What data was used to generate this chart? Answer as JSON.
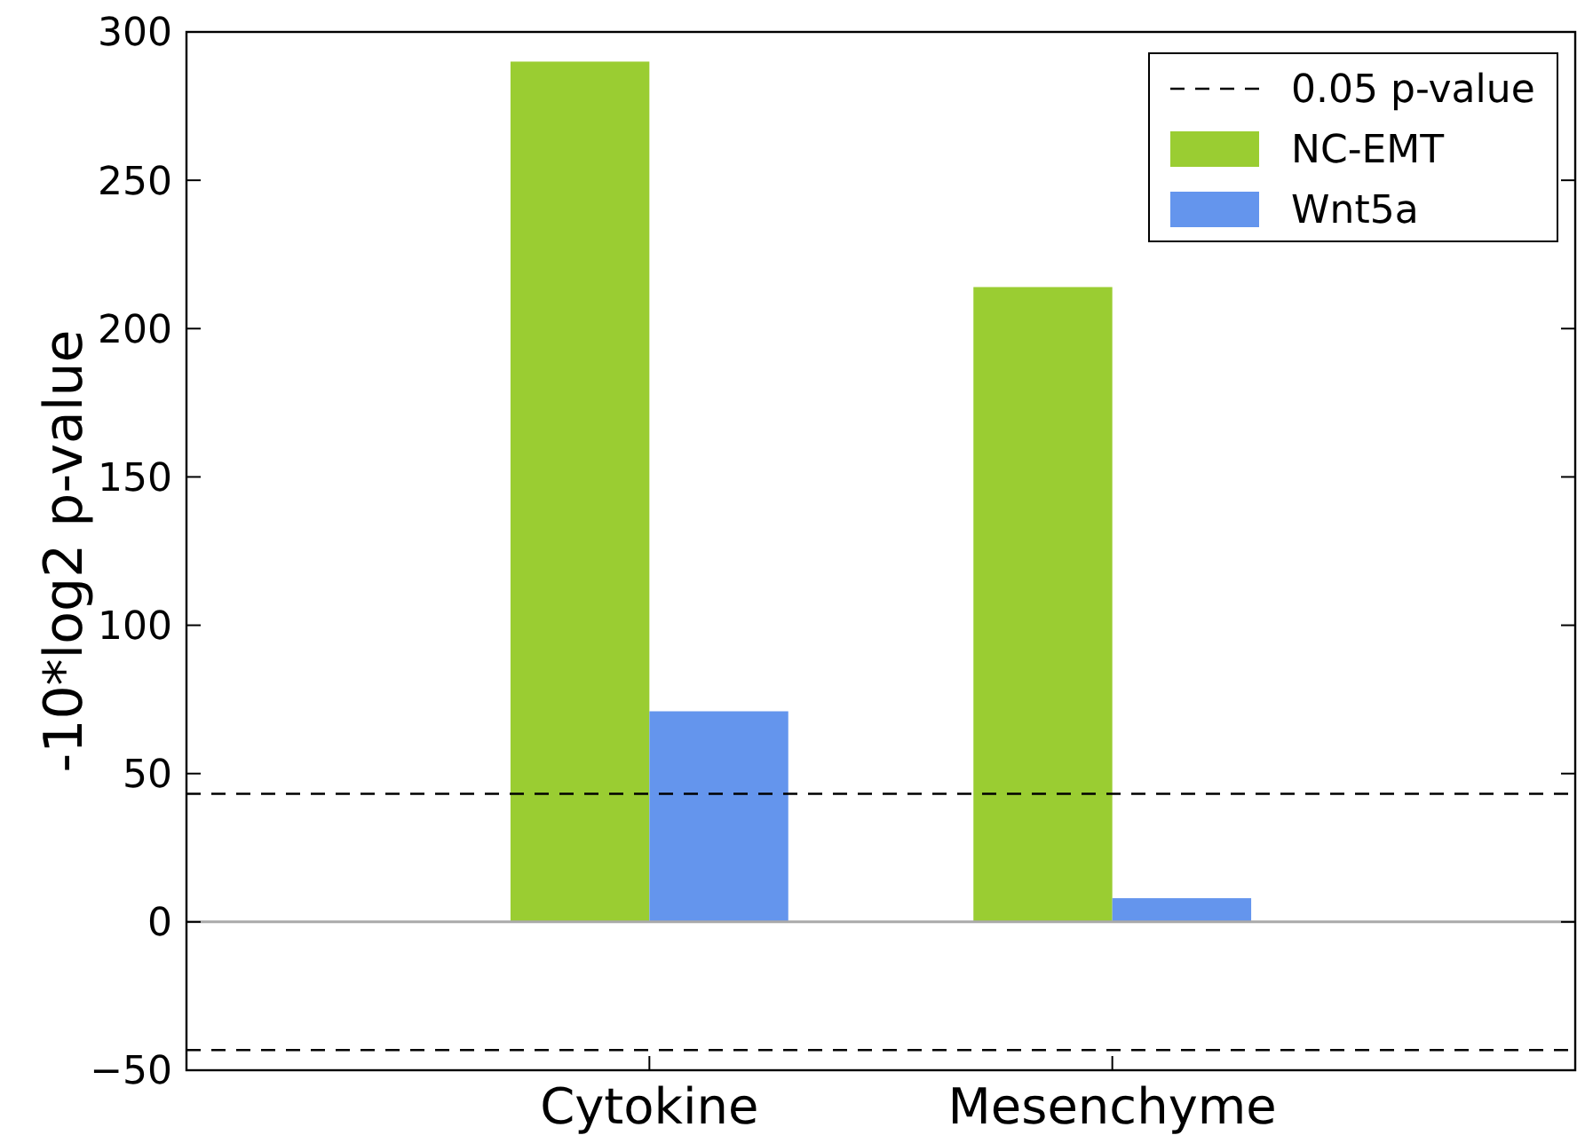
{
  "chart_data": {
    "type": "bar",
    "ylabel": "-10*log2 p-value",
    "categories": [
      "Cytokine",
      "Mesenchyme"
    ],
    "series": [
      {
        "name": "NC-EMT",
        "color": "#9acd32",
        "values": [
          290,
          214
        ]
      },
      {
        "name": "Wnt5a",
        "color": "#6495ed",
        "values": [
          71,
          8
        ]
      }
    ],
    "ylim": [
      -50,
      300
    ],
    "yticks": [
      {
        "value": -50,
        "label": "−50"
      },
      0,
      50,
      100,
      150,
      200,
      250,
      300
    ],
    "ref_lines": [
      {
        "axis": "y",
        "value": 43.2,
        "label": "0.05 p-value",
        "color": "#000000",
        "line_style": "dashed"
      },
      {
        "axis": "y",
        "value": -43.2,
        "color": "#000000",
        "line_style": "dashed"
      }
    ],
    "legend": "top right"
  }
}
